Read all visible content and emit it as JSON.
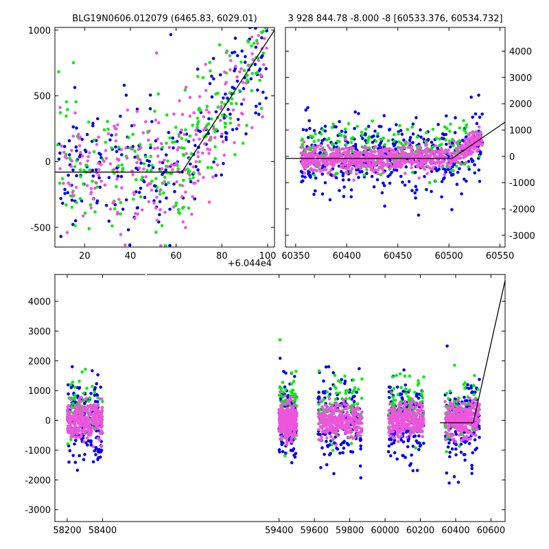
{
  "chart_data": [
    {
      "type": "scatter",
      "title": "BLG19N0606.012079 (6465.83, 6029.01)",
      "x_offset_label": "+6.044e4",
      "xlim": [
        7,
        103
      ],
      "ylim": [
        -650,
        1020
      ],
      "xticks": [
        20,
        40,
        60,
        80,
        100
      ],
      "yticks": [
        -500,
        0,
        500,
        1000
      ],
      "model_line": {
        "x": [
          7,
          62.5,
          103
        ],
        "y": [
          -80,
          -80,
          1000
        ]
      },
      "series": [
        {
          "color": "#ee55dd"
        },
        {
          "color": "#0000ee"
        },
        {
          "color": "#00ee00"
        }
      ]
    },
    {
      "type": "scatter",
      "title": "3 928 844.78 -8.000 -8 [60533.376, 60534.732]",
      "xlim": [
        60340,
        60555
      ],
      "ylim": [
        -3450,
        4900
      ],
      "xticks": [
        60350,
        60400,
        60450,
        60500,
        60550
      ],
      "yticks": [
        -3000,
        -2000,
        -1000,
        0,
        1000,
        2000,
        3000,
        4000
      ],
      "model_line": {
        "x": [
          60340,
          60503,
          60555
        ],
        "y": [
          -80,
          -80,
          1300
        ]
      },
      "series": [
        {
          "color": "#ee55dd"
        },
        {
          "color": "#0000ee"
        },
        {
          "color": "#00ee00"
        }
      ]
    },
    {
      "type": "scatter",
      "xlim": [
        58130,
        60680
      ],
      "ylim": [
        -3400,
        4900
      ],
      "xticks": [
        58200,
        58400,
        59400,
        59600,
        59800,
        60000,
        60200,
        60400,
        60600
      ],
      "yticks": [
        -3000,
        -2000,
        -1000,
        0,
        1000,
        2000,
        3000,
        4000
      ],
      "seasons": [
        [
          58200,
          58400
        ],
        [
          59400,
          59500
        ],
        [
          59620,
          59870
        ],
        [
          60020,
          60220
        ],
        [
          60340,
          60535
        ]
      ],
      "model_line": {
        "x": [
          60310,
          60500,
          60680
        ],
        "y": [
          -80,
          -80,
          4700
        ]
      },
      "series": [
        {
          "color": "#ee55dd"
        },
        {
          "color": "#0000ee"
        },
        {
          "color": "#00ee00"
        }
      ]
    }
  ]
}
